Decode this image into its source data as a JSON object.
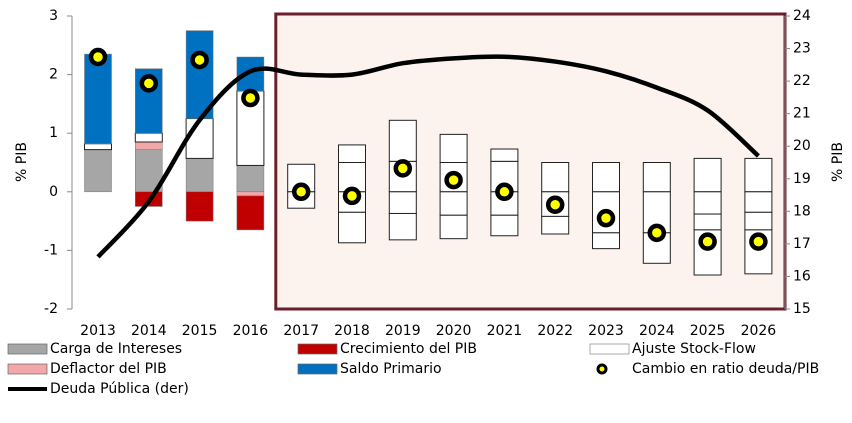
{
  "chart_data": {
    "type": "bar",
    "categories": [
      "2013",
      "2014",
      "2015",
      "2016",
      "2017",
      "2018",
      "2019",
      "2020",
      "2021",
      "2022",
      "2023",
      "2024",
      "2025",
      "2026"
    ],
    "ylabel": "% PIB",
    "y2label": "% PIB",
    "ylim": [
      -2,
      3
    ],
    "yticks": [
      -2,
      -1,
      0,
      1,
      2,
      3
    ],
    "y2lim": [
      15,
      24
    ],
    "y2ticks": [
      15,
      16,
      17,
      18,
      19,
      20,
      21,
      22,
      23,
      24
    ],
    "projection": {
      "start": 4,
      "fill": "#ffffff",
      "background": "#fcf3ee",
      "border": "#6b1f2b"
    },
    "series": [
      {
        "name": "Carga de Intereses",
        "type": "bar",
        "color": "#a6a6a6",
        "values": [
          0.72,
          0.72,
          0.57,
          0.45,
          0.47,
          0.5,
          0.52,
          0.5,
          0.52,
          0.5,
          0.5,
          0.5,
          0.57,
          0.57
        ]
      },
      {
        "name": "Deflactor del PIB",
        "type": "bar",
        "color": "#f2a7ab",
        "values": [
          0,
          0.13,
          0,
          -0.07,
          0,
          -0.35,
          -0.37,
          -0.4,
          -0.4,
          -0.42,
          -0.7,
          -0.7,
          -0.38,
          -0.35
        ]
      },
      {
        "name": "Ajuste Stock-Flow",
        "type": "bar",
        "color": "#ffffff",
        "values": [
          0.1,
          0.15,
          0.68,
          1.27,
          null,
          null,
          null,
          null,
          null,
          null,
          null,
          null,
          null,
          null
        ]
      },
      {
        "name": "Crecimiento del PIB",
        "type": "bar",
        "color": "#c00000",
        "values": [
          0,
          -0.25,
          -0.5,
          -0.58,
          -0.28,
          -0.52,
          -0.45,
          -0.4,
          -0.35,
          -0.3,
          -0.27,
          -0.52,
          -0.27,
          -0.3
        ]
      },
      {
        "name": "Saldo Primario",
        "type": "bar",
        "color": "#0070c0",
        "values": [
          1.53,
          1.1,
          1.5,
          0.58,
          0,
          0.3,
          0.7,
          0.48,
          0.21,
          0,
          0,
          0,
          -0.77,
          -0.75
        ]
      },
      {
        "name": "Cambio en ratio deuda/PIB",
        "type": "scatter",
        "color": "#ffff00",
        "values": [
          2.3,
          1.85,
          2.25,
          1.6,
          0,
          -0.07,
          0.4,
          0.2,
          0,
          -0.22,
          -0.45,
          -0.7,
          -0.85,
          -0.85
        ]
      },
      {
        "name": "Deuda Pública (der)",
        "type": "line",
        "axis": "y2",
        "color": "#000000",
        "values": [
          16.6,
          18.3,
          20.8,
          22.3,
          22.2,
          22.2,
          22.55,
          22.7,
          22.75,
          22.6,
          22.3,
          21.8,
          21.1,
          19.7
        ]
      }
    ]
  }
}
